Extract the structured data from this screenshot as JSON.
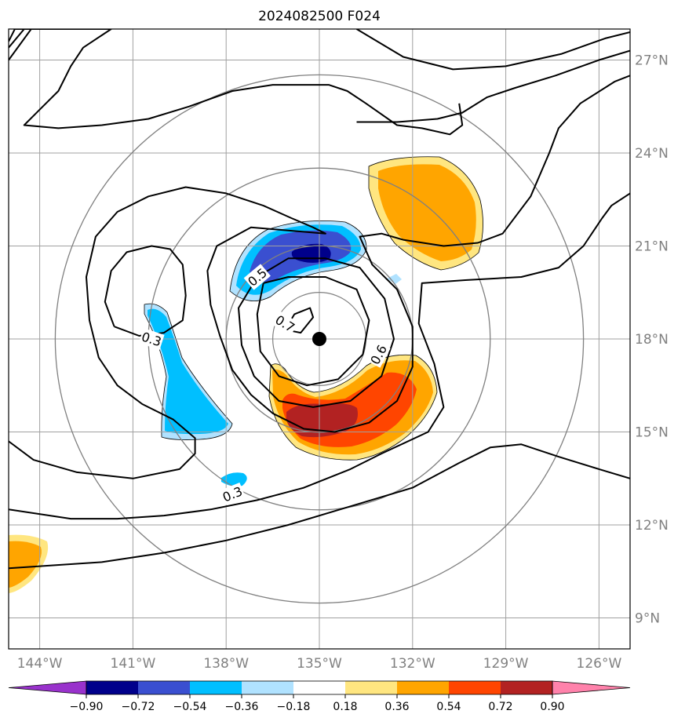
{
  "chart_data": {
    "type": "contour_map",
    "title": "2024082500 F024",
    "x_ticks": [
      "144°W",
      "141°W",
      "138°W",
      "135°W",
      "132°W",
      "129°W",
      "126°W"
    ],
    "y_ticks": [
      "27°N",
      "24°N",
      "21°N",
      "18°N",
      "15°N",
      "12°N",
      "9°N"
    ],
    "lon_range": [
      -145,
      -125
    ],
    "lat_range": [
      8,
      28
    ],
    "grid": true,
    "center": {
      "lon": -135,
      "lat": 18
    },
    "range_ring_radii_deg": [
      3,
      5.5,
      8.5
    ],
    "colorbar": {
      "levels": [
        -0.9,
        -0.72,
        -0.54,
        -0.36,
        -0.18,
        0.18,
        0.36,
        0.54,
        0.72,
        0.9
      ],
      "labels": [
        "−0.90",
        "−0.72",
        "−0.54",
        "−0.36",
        "−0.18",
        "0.18",
        "0.36",
        "0.54",
        "0.72",
        "0.90"
      ],
      "colors": [
        "#9932cc",
        "#00008b",
        "#3a4fd0",
        "#00bfff",
        "#b0e2ff",
        "#ffffff",
        "#ffe680",
        "#ffa500",
        "#ff4500",
        "#b22222",
        "#ff82ab"
      ],
      "extend": "both"
    },
    "contour_labels": [
      {
        "text": "0.7",
        "lon": -136.1,
        "lat": 18.5,
        "rot": 32
      },
      {
        "text": "0.5",
        "lon": -137.0,
        "lat": 20.0,
        "rot": -40
      },
      {
        "text": "0.6",
        "lon": -133.1,
        "lat": 17.5,
        "rot": -62
      },
      {
        "text": "0.3",
        "lon": -140.4,
        "lat": 18.0,
        "rot": 18
      },
      {
        "text": "0.3",
        "lon": -137.8,
        "lat": 13.0,
        "rot": -22
      }
    ],
    "black_contours": [
      [
        [
          -145,
          27.0
        ],
        [
          -144.2,
          28.1
        ]
      ],
      [
        [
          -145,
          10.6
        ],
        [
          -142,
          10.8
        ],
        [
          -140,
          11.1
        ],
        [
          -138,
          11.5
        ],
        [
          -136,
          12.0
        ],
        [
          -134,
          12.6
        ],
        [
          -132,
          13.2
        ],
        [
          -130.5,
          14.0
        ],
        [
          -129.5,
          14.5
        ],
        [
          -128.5,
          14.6
        ],
        [
          -127.3,
          14.2
        ],
        [
          -126,
          13.8
        ],
        [
          -125,
          13.5
        ]
      ],
      [
        [
          -145,
          12.5
        ],
        [
          -143,
          12.2
        ],
        [
          -141.5,
          12.2
        ],
        [
          -140,
          12.3
        ],
        [
          -138.5,
          12.5
        ],
        [
          -137,
          12.8
        ],
        [
          -135.5,
          13.2
        ],
        [
          -134,
          13.8
        ],
        [
          -133,
          14.3
        ],
        [
          -131.5,
          15.0
        ],
        [
          -131,
          15.8
        ],
        [
          -131.3,
          17.2
        ],
        [
          -131.8,
          18.5
        ],
        [
          -131.7,
          19.8
        ],
        [
          -130.3,
          19.9
        ],
        [
          -128.5,
          20.0
        ],
        [
          -127.3,
          20.3
        ],
        [
          -126.5,
          21.0
        ],
        [
          -125.9,
          21.9
        ],
        [
          -125.6,
          22.3
        ],
        [
          -125,
          22.7
        ]
      ],
      [
        [
          -145,
          14.7
        ],
        [
          -144.2,
          14.1
        ],
        [
          -142.8,
          13.7
        ],
        [
          -141,
          13.5
        ],
        [
          -139.5,
          13.8
        ],
        [
          -139,
          14.3
        ],
        [
          -139,
          14.8
        ],
        [
          -139.7,
          15.4
        ],
        [
          -140.7,
          15.9
        ],
        [
          -141.5,
          16.5
        ],
        [
          -142.1,
          17.4
        ],
        [
          -142.4,
          18.6
        ],
        [
          -142.5,
          20.0
        ],
        [
          -142.2,
          21.3
        ],
        [
          -141.5,
          22.1
        ],
        [
          -140.5,
          22.6
        ],
        [
          -139.3,
          22.9
        ],
        [
          -138,
          22.7
        ],
        [
          -136.8,
          22.3
        ],
        [
          -135.9,
          21.9
        ],
        [
          -135.2,
          21.6
        ],
        [
          -134.8,
          21.4
        ],
        [
          -136,
          21.5
        ],
        [
          -137.2,
          21.6
        ],
        [
          -138.3,
          21.0
        ],
        [
          -138.6,
          20.2
        ],
        [
          -138.5,
          19.1
        ],
        [
          -138.2,
          18.1
        ],
        [
          -137.8,
          17.0
        ],
        [
          -137.2,
          16.2
        ],
        [
          -136.5,
          15.6
        ],
        [
          -135.5,
          15.1
        ],
        [
          -134.5,
          15.0
        ],
        [
          -133.4,
          15.3
        ],
        [
          -132.5,
          16.0
        ],
        [
          -132.0,
          17.1
        ],
        [
          -132.0,
          18.4
        ],
        [
          -132.5,
          19.6
        ],
        [
          -133.3,
          20.4
        ],
        [
          -133.7,
          21.3
        ],
        [
          -133.0,
          21.4
        ],
        [
          -132.3,
          21.2
        ],
        [
          -131,
          21.0
        ],
        [
          -129.9,
          21.1
        ],
        [
          -129.1,
          21.4
        ],
        [
          -128.2,
          22.6
        ],
        [
          -127.6,
          24.0
        ],
        [
          -127.3,
          24.8
        ],
        [
          -126.6,
          25.6
        ],
        [
          -125.5,
          26.3
        ],
        [
          -125,
          26.5
        ]
      ],
      [
        [
          -133.8,
          25.0
        ],
        [
          -132.5,
          25.0
        ],
        [
          -131.2,
          25.1
        ],
        [
          -130.4,
          25.3
        ],
        [
          -129.6,
          25.8
        ],
        [
          -128.7,
          26.1
        ],
        [
          -127.4,
          26.5
        ],
        [
          -126,
          27.0
        ],
        [
          -125,
          27.3
        ]
      ],
      [
        [
          -145,
          27.4
        ],
        [
          -144.5,
          28.0
        ],
        [
          -143.7,
          28.0
        ]
      ],
      [
        [
          -133.8,
          28
        ],
        [
          -132.3,
          27.1
        ],
        [
          -130.7,
          26.7
        ],
        [
          -129,
          26.8
        ],
        [
          -127.2,
          27.2
        ],
        [
          -125.8,
          27.7
        ],
        [
          -125,
          27.9
        ]
      ],
      [
        [
          -145,
          27.6
        ],
        [
          -144.8,
          28
        ],
        [
          -141.7,
          28
        ],
        [
          -142.6,
          27.4
        ],
        [
          -143.0,
          26.8
        ],
        [
          -143.4,
          26.0
        ],
        [
          -144,
          25.4
        ],
        [
          -144.5,
          24.9
        ],
        [
          -143.4,
          24.8
        ],
        [
          -142.0,
          24.9
        ],
        [
          -140.5,
          25.1
        ],
        [
          -139.2,
          25.5
        ],
        [
          -137.8,
          26.0
        ],
        [
          -136.5,
          26.2
        ],
        [
          -134.7,
          26.2
        ],
        [
          -134.1,
          26.0
        ],
        [
          -133.5,
          25.6
        ],
        [
          -132.5,
          24.9
        ],
        [
          -131.7,
          24.8
        ],
        [
          -130.8,
          24.6
        ],
        [
          -130.4,
          24.9
        ],
        [
          -130.5,
          25.6
        ]
      ],
      [
        [
          -141.6,
          18.4
        ],
        [
          -141.9,
          19.2
        ],
        [
          -141.7,
          20.2
        ],
        [
          -141.2,
          20.8
        ],
        [
          -140.4,
          21.0
        ],
        [
          -139.8,
          20.9
        ],
        [
          -139.4,
          20.4
        ],
        [
          -139.3,
          19.4
        ],
        [
          -139.4,
          18.6
        ],
        [
          -140,
          18.2
        ],
        [
          -140.8,
          18.1
        ],
        [
          -141.6,
          18.4
        ]
      ],
      [
        [
          -136.1,
          18.3
        ],
        [
          -135.8,
          18.8
        ],
        [
          -135.3,
          19.0
        ],
        [
          -135.2,
          18.7
        ],
        [
          -135.6,
          18.2
        ],
        [
          -136.1,
          18.3
        ]
      ],
      [
        [
          -137.0,
          20.0
        ],
        [
          -137.6,
          19.0
        ],
        [
          -137.5,
          17.8
        ],
        [
          -137.1,
          16.8
        ],
        [
          -136.3,
          16.0
        ],
        [
          -135.2,
          15.8
        ],
        [
          -134.0,
          16.0
        ],
        [
          -133.0,
          16.8
        ],
        [
          -132.6,
          18.0
        ],
        [
          -132.9,
          19.3
        ],
        [
          -133.7,
          20.3
        ],
        [
          -134.8,
          20.6
        ],
        [
          -136.0,
          20.6
        ],
        [
          -137.0,
          20.0
        ]
      ],
      [
        [
          -136.8,
          19.8
        ],
        [
          -137.0,
          18.8
        ],
        [
          -136.9,
          17.6
        ],
        [
          -136.3,
          16.8
        ],
        [
          -135.4,
          16.5
        ],
        [
          -134.4,
          16.7
        ],
        [
          -133.6,
          17.5
        ],
        [
          -133.4,
          18.6
        ],
        [
          -133.8,
          19.6
        ],
        [
          -134.8,
          20.0
        ],
        [
          -136.0,
          20.0
        ],
        [
          -136.8,
          19.8
        ]
      ]
    ]
  }
}
